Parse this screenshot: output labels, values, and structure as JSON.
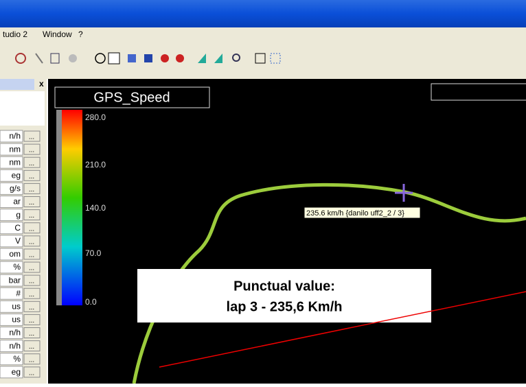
{
  "menu": [
    "tudio 2",
    "Window",
    "?"
  ],
  "panel": {
    "close": "x",
    "units": [
      "n/h",
      "nm",
      "nm",
      "eg",
      "g/s",
      "ar",
      "g",
      "C",
      "V",
      "om",
      "%",
      "bar",
      "#",
      "us",
      "us",
      "n/h",
      "n/h",
      "%",
      "eg"
    ],
    "button": "..."
  },
  "map": {
    "title": "GPS_Speed",
    "scale_labels": [
      "280.0",
      "210.0",
      "140.0",
      "70.0",
      "0.0"
    ],
    "tooltip": "235.6 km/h {danilo uff2_2 / 3}"
  },
  "annotation": {
    "line1": "Punctual value:",
    "line2": "lap 3 - 235,6 Km/h"
  }
}
